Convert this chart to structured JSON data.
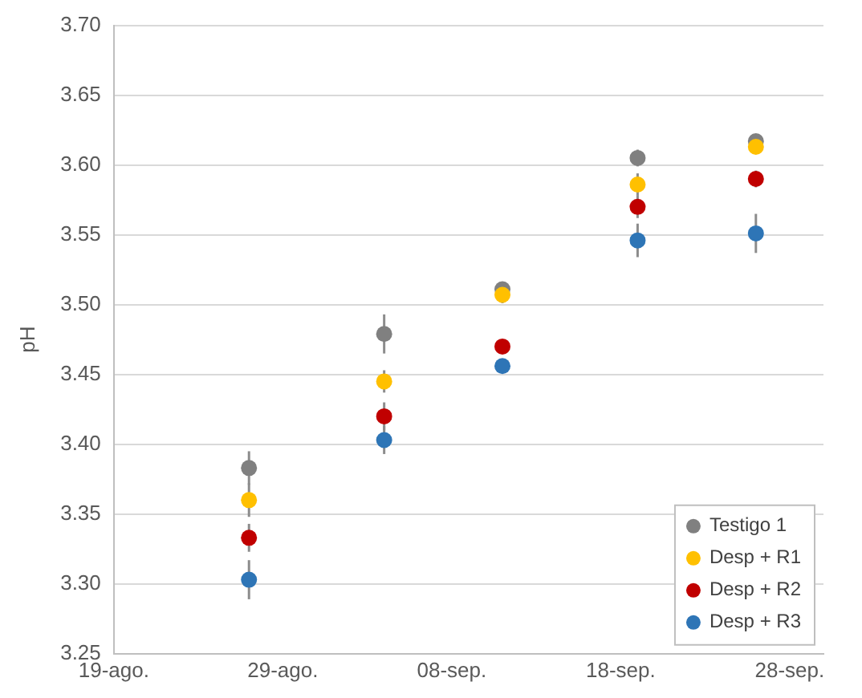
{
  "chart_data": {
    "type": "scatter",
    "ylabel": "pH",
    "x": [
      "--08-27",
      "--09-04",
      "--09-11",
      "--09-19",
      "--09-26"
    ],
    "series": [
      {
        "name": "Testigo 1",
        "color": "#808080",
        "values": [
          3.383,
          3.479,
          3.511,
          3.605,
          3.617
        ],
        "errors": [
          0.012,
          0.014,
          null,
          0.006,
          null
        ]
      },
      {
        "name": "Desp + R1",
        "color": "#ffc000",
        "values": [
          3.36,
          3.445,
          3.507,
          3.586,
          3.613
        ],
        "errors": [
          0.012,
          0.008,
          0.006,
          0.008,
          null
        ]
      },
      {
        "name": "Desp + R2",
        "color": "#c00000",
        "values": [
          3.333,
          3.42,
          3.47,
          3.57,
          3.59
        ],
        "errors": [
          0.01,
          0.01,
          null,
          0.008,
          0.006
        ]
      },
      {
        "name": "Desp + R3",
        "color": "#2e75b6",
        "values": [
          3.303,
          3.403,
          3.456,
          3.546,
          3.551
        ],
        "errors": [
          0.014,
          0.01,
          null,
          0.012,
          0.014
        ]
      }
    ],
    "xlim": [
      "--08-19",
      "--09-30"
    ],
    "xticks": [
      {
        "value": "--08-19",
        "label": "19-ago."
      },
      {
        "value": "--08-29",
        "label": "29-ago."
      },
      {
        "value": "--09-08",
        "label": "08-sep."
      },
      {
        "value": "--09-18",
        "label": "18-sep."
      },
      {
        "value": "--09-28",
        "label": "28-sep."
      }
    ],
    "ylim": [
      3.25,
      3.7
    ],
    "yticks": [
      {
        "value": 3.25,
        "label": "3.25"
      },
      {
        "value": 3.3,
        "label": "3.30"
      },
      {
        "value": 3.35,
        "label": "3.35"
      },
      {
        "value": 3.4,
        "label": "3.40"
      },
      {
        "value": 3.45,
        "label": "3.45"
      },
      {
        "value": 3.5,
        "label": "3.50"
      },
      {
        "value": 3.55,
        "label": "3.55"
      },
      {
        "value": 3.6,
        "label": "3.60"
      },
      {
        "value": 3.65,
        "label": "3.65"
      },
      {
        "value": 3.7,
        "label": "3.70"
      }
    ],
    "grid": "y",
    "legend": "bottom right",
    "marker": "circle"
  }
}
